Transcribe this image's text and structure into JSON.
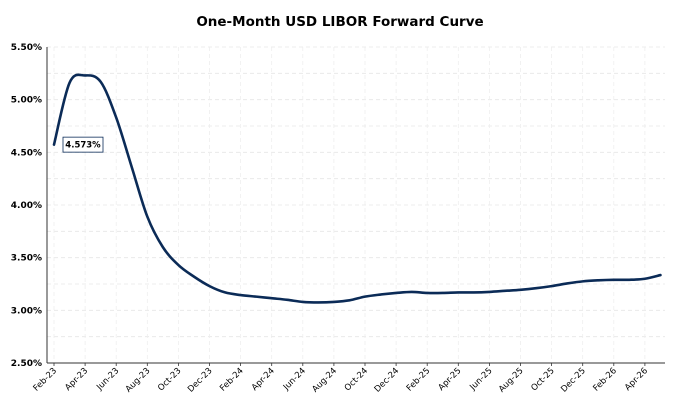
{
  "chart_data": {
    "type": "line",
    "title": "One-Month USD LIBOR Forward Curve",
    "xlabel": "",
    "ylabel": "",
    "x_tick_labels": [
      "Feb-23",
      "Apr-23",
      "Jun-23",
      "Aug-23",
      "Oct-23",
      "Dec-23",
      "Feb-24",
      "Apr-24",
      "Jun-24",
      "Aug-24",
      "Oct-24",
      "Dec-24",
      "Feb-25",
      "Apr-25",
      "Jun-25",
      "Aug-25",
      "Oct-25",
      "Dec-25",
      "Feb-26",
      "Apr-26"
    ],
    "y_tick_labels": [
      "2.50%",
      "3.00%",
      "3.50%",
      "4.00%",
      "4.50%",
      "5.00%",
      "5.50%"
    ],
    "ylim": [
      2.5,
      5.5
    ],
    "grid": true,
    "line_color": "#0b2b57",
    "series": [
      {
        "x": [
          "Feb-23",
          "Mar-23",
          "Apr-23",
          "May-23",
          "Jun-23",
          "Jul-23",
          "Aug-23",
          "Sep-23",
          "Oct-23",
          "Nov-23",
          "Dec-23",
          "Jan-24",
          "Feb-24",
          "Mar-24",
          "Apr-24",
          "May-24",
          "Jun-24",
          "Jul-24",
          "Aug-24",
          "Sep-24",
          "Oct-24",
          "Nov-24",
          "Dec-24",
          "Jan-25",
          "Feb-25",
          "Mar-25",
          "Apr-25",
          "May-25",
          "Jun-25",
          "Jul-25",
          "Aug-25",
          "Sep-25",
          "Oct-25",
          "Nov-25",
          "Dec-25",
          "Jan-26",
          "Feb-26",
          "Mar-26",
          "Apr-26",
          "May-26"
        ],
        "values": [
          4.573,
          5.16,
          5.23,
          5.17,
          4.83,
          4.36,
          3.89,
          3.6,
          3.43,
          3.32,
          3.23,
          3.17,
          3.145,
          3.13,
          3.115,
          3.1,
          3.08,
          3.075,
          3.08,
          3.095,
          3.13,
          3.15,
          3.165,
          3.175,
          3.165,
          3.165,
          3.17,
          3.17,
          3.175,
          3.185,
          3.195,
          3.21,
          3.23,
          3.255,
          3.275,
          3.285,
          3.29,
          3.29,
          3.3,
          3.335
        ]
      }
    ],
    "annotations": [
      {
        "text": "4.573%",
        "x": "Feb-23",
        "y": 4.573
      }
    ]
  }
}
